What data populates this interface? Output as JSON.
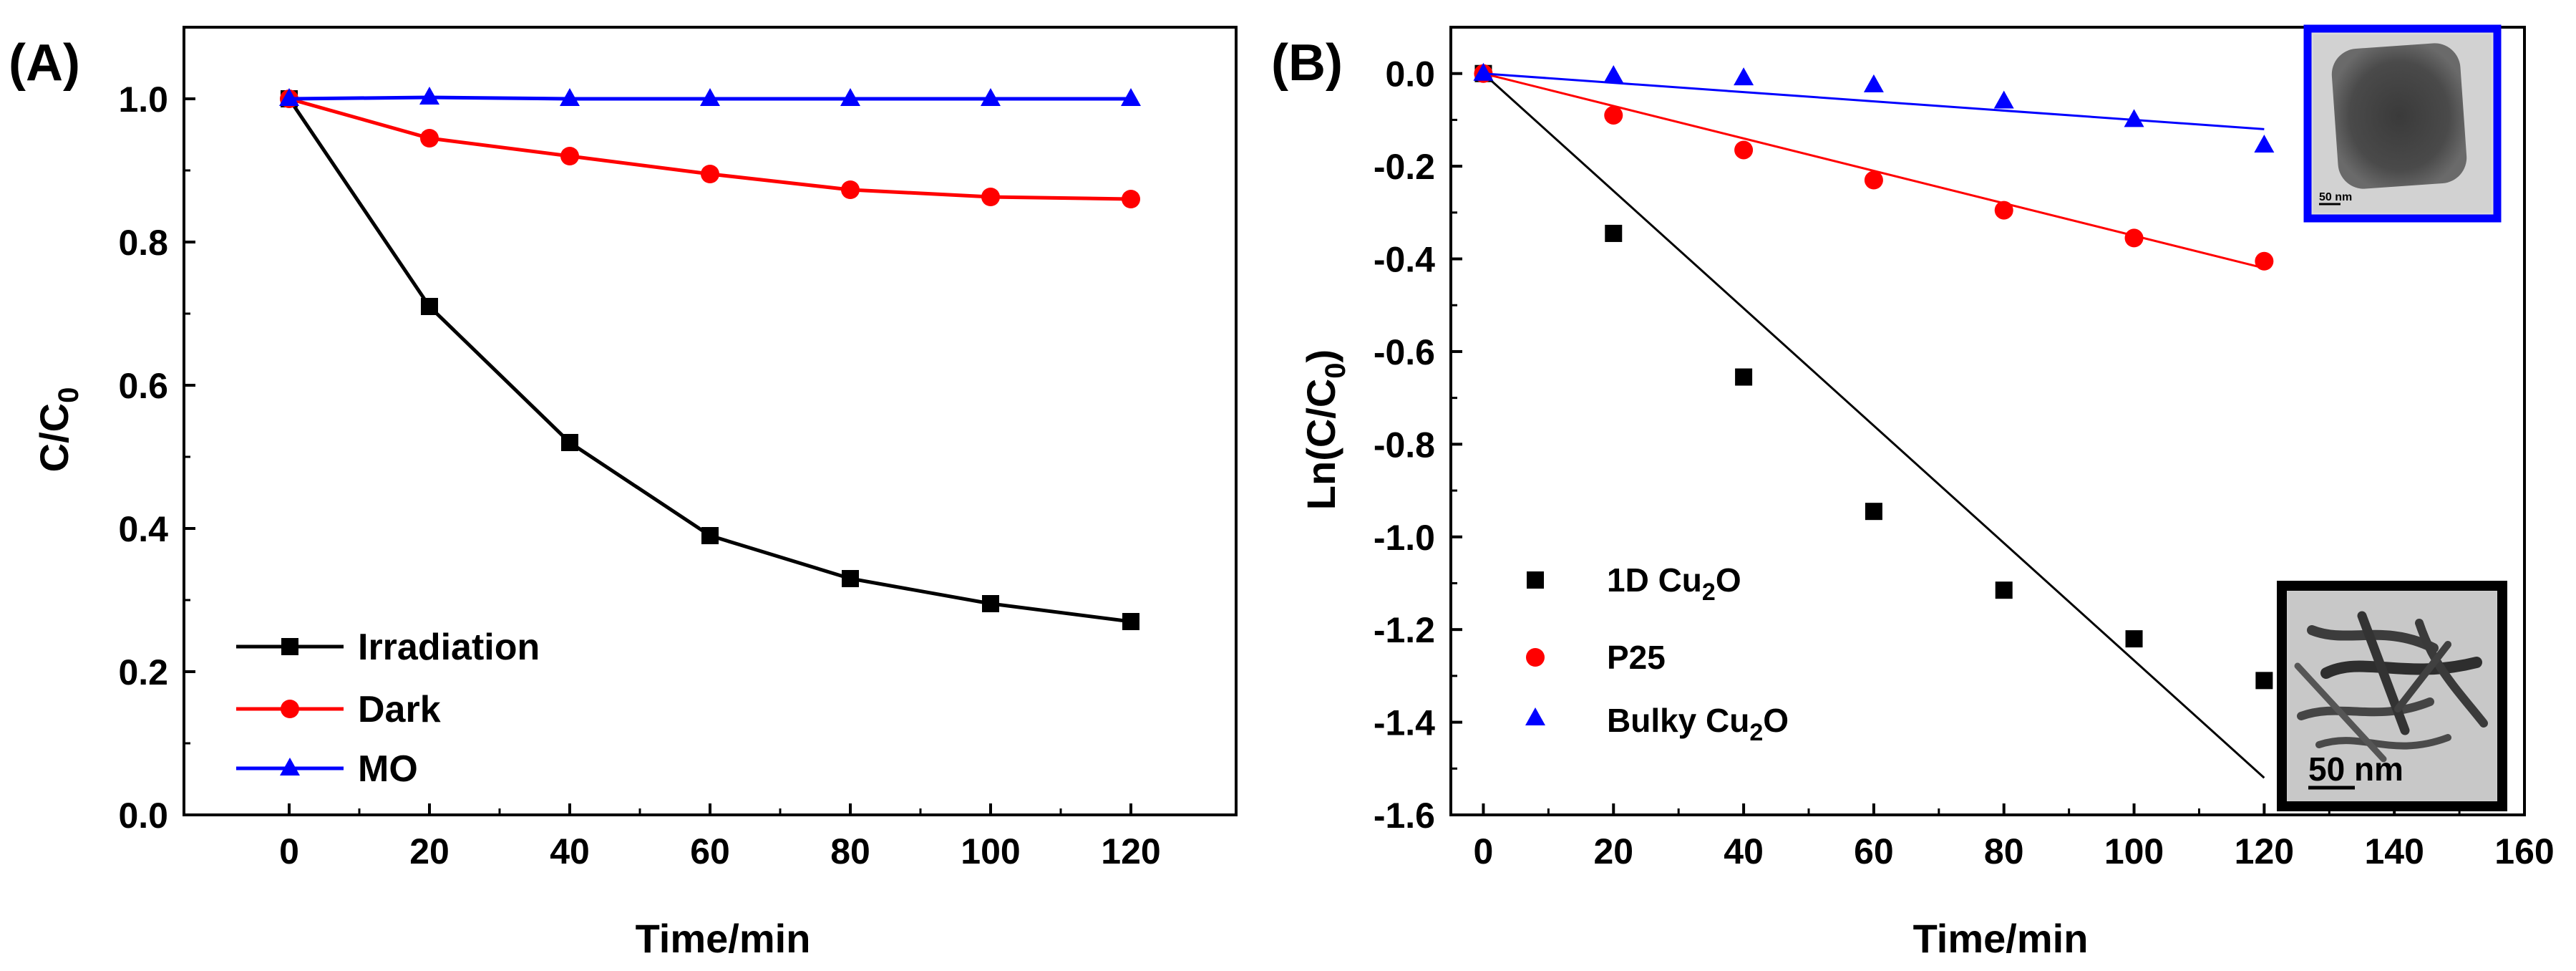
{
  "chart_data": [
    {
      "panel": "(A)",
      "type": "line",
      "xlabel": "Time/min",
      "ylabel_main": "C/C",
      "ylabel_sub": "0",
      "xlim": [
        -15,
        135
      ],
      "ylim": [
        0.0,
        1.1
      ],
      "xticks": [
        0,
        20,
        40,
        60,
        80,
        100,
        120
      ],
      "yticks": [
        0.0,
        0.2,
        0.4,
        0.6,
        0.8,
        1.0
      ],
      "x": [
        0,
        20,
        40,
        60,
        80,
        100,
        120
      ],
      "series": [
        {
          "name": "Irradiation",
          "color": "#000000",
          "marker": "square",
          "values": [
            1.0,
            0.71,
            0.52,
            0.39,
            0.33,
            0.295,
            0.27
          ]
        },
        {
          "name": "Dark",
          "color": "#ff0000",
          "marker": "circle",
          "values": [
            1.0,
            0.945,
            0.92,
            0.895,
            0.873,
            0.863,
            0.86
          ]
        },
        {
          "name": "MO",
          "color": "#0000ff",
          "marker": "triangle",
          "values": [
            1.0,
            1.002,
            1.0,
            1.0,
            1.0,
            1.0,
            1.0
          ]
        }
      ],
      "legend_position": "bottom-left"
    },
    {
      "panel": "(B)",
      "type": "scatter",
      "xlabel": "Time/min",
      "ylabel_main": "Ln(C/C",
      "ylabel_sub": "0",
      "ylabel_end": ")",
      "xlim": [
        -5,
        160
      ],
      "ylim": [
        -1.6,
        0.1
      ],
      "xticks": [
        0,
        20,
        40,
        60,
        80,
        100,
        120,
        140,
        160
      ],
      "yticks": [
        0.0,
        -0.2,
        -0.4,
        -0.6,
        -0.8,
        -1.0,
        -1.2,
        -1.4,
        -1.6
      ],
      "x": [
        0,
        20,
        40,
        60,
        80,
        100,
        120
      ],
      "series": [
        {
          "name": "1D Cu",
          "sub": "2",
          "tail": "O",
          "color": "#000000",
          "marker": "square",
          "values": [
            0.0,
            -0.345,
            -0.655,
            -0.945,
            -1.115,
            -1.22,
            -1.31
          ],
          "fit": [
            [
              0,
              0.0
            ],
            [
              120,
              -1.52
            ]
          ]
        },
        {
          "name": "P25",
          "sub": "",
          "tail": "",
          "color": "#ff0000",
          "marker": "circle",
          "values": [
            0.0,
            -0.09,
            -0.165,
            -0.23,
            -0.295,
            -0.355,
            -0.405
          ],
          "fit": [
            [
              0,
              0.0
            ],
            [
              120,
              -0.42
            ]
          ]
        },
        {
          "name": "Bulky Cu",
          "sub": "2",
          "tail": "O",
          "color": "#0000ff",
          "marker": "triangle",
          "values": [
            0.0,
            -0.005,
            -0.01,
            -0.025,
            -0.06,
            -0.1,
            -0.155
          ],
          "fit": [
            [
              0,
              0.0
            ],
            [
              120,
              -0.12
            ]
          ]
        }
      ],
      "legend_position": "bottom-left",
      "insets": [
        {
          "name": "bulky-cu2o-tem",
          "scale_label": "50 nm",
          "frame_color": "#0000ff"
        },
        {
          "name": "1d-cu2o-tem",
          "scale_label": "50 nm",
          "frame_color": "#000000"
        }
      ]
    }
  ]
}
